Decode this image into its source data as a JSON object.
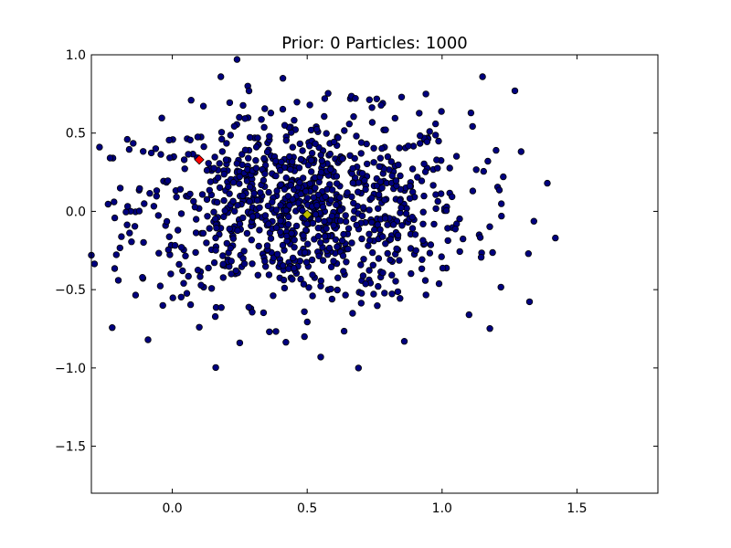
{
  "chart_data": {
    "type": "scatter",
    "title": "Prior: 0 Particles: 1000",
    "xlabel": "",
    "ylabel": "",
    "xlim": [
      -0.3,
      1.8
    ],
    "ylim": [
      -1.8,
      1.0
    ],
    "xticks": [
      0.0,
      0.5,
      1.0,
      1.5
    ],
    "xtick_labels": [
      "0.0",
      "0.5",
      "1.0",
      "1.5"
    ],
    "yticks": [
      1.0,
      0.5,
      0.0,
      -0.5,
      -1.0,
      -1.5
    ],
    "ytick_labels": [
      "1.0",
      "0.5",
      "0.0",
      "−0.5",
      "−1.0",
      "−1.5"
    ],
    "grid": false,
    "particle_count": 1000,
    "particle_distribution": {
      "mean": [
        0.48,
        0.02
      ],
      "std": [
        0.31,
        0.3
      ]
    },
    "particles_sample": [
      [
        0.24,
        0.97
      ],
      [
        0.18,
        0.86
      ],
      [
        0.28,
        0.8
      ],
      [
        0.41,
        0.85
      ],
      [
        1.15,
        0.86
      ],
      [
        1.27,
        0.77
      ],
      [
        0.07,
        0.71
      ],
      [
        -0.27,
        0.41
      ],
      [
        -0.22,
        0.34
      ],
      [
        1.39,
        0.18
      ],
      [
        1.42,
        -0.17
      ],
      [
        1.32,
        -0.27
      ],
      [
        1.22,
        -0.03
      ],
      [
        -0.3,
        -0.28
      ],
      [
        -0.09,
        -0.82
      ],
      [
        0.25,
        -0.84
      ],
      [
        0.69,
        -1.0
      ],
      [
        0.55,
        -0.93
      ],
      [
        0.49,
        -0.8
      ],
      [
        1.1,
        -0.66
      ],
      [
        0.86,
        -0.83
      ],
      [
        -0.2,
        -0.44
      ],
      [
        0.1,
        -0.74
      ],
      [
        1.2,
        0.39
      ],
      [
        0.94,
        0.75
      ],
      [
        0.85,
        0.73
      ],
      [
        0.66,
        0.72
      ],
      [
        0.78,
        0.69
      ],
      [
        0.51,
        0.68
      ]
    ],
    "highlight_points": [
      {
        "name": "red-diamond",
        "x": 0.1,
        "y": 0.33,
        "color": "#ff0000",
        "marker": "diamond"
      },
      {
        "name": "yellow-diamond",
        "x": 0.5,
        "y": -0.02,
        "color": "#bfbf00",
        "marker": "diamond"
      }
    ],
    "marker_color": "#00007f",
    "marker_edge": "#000000"
  }
}
